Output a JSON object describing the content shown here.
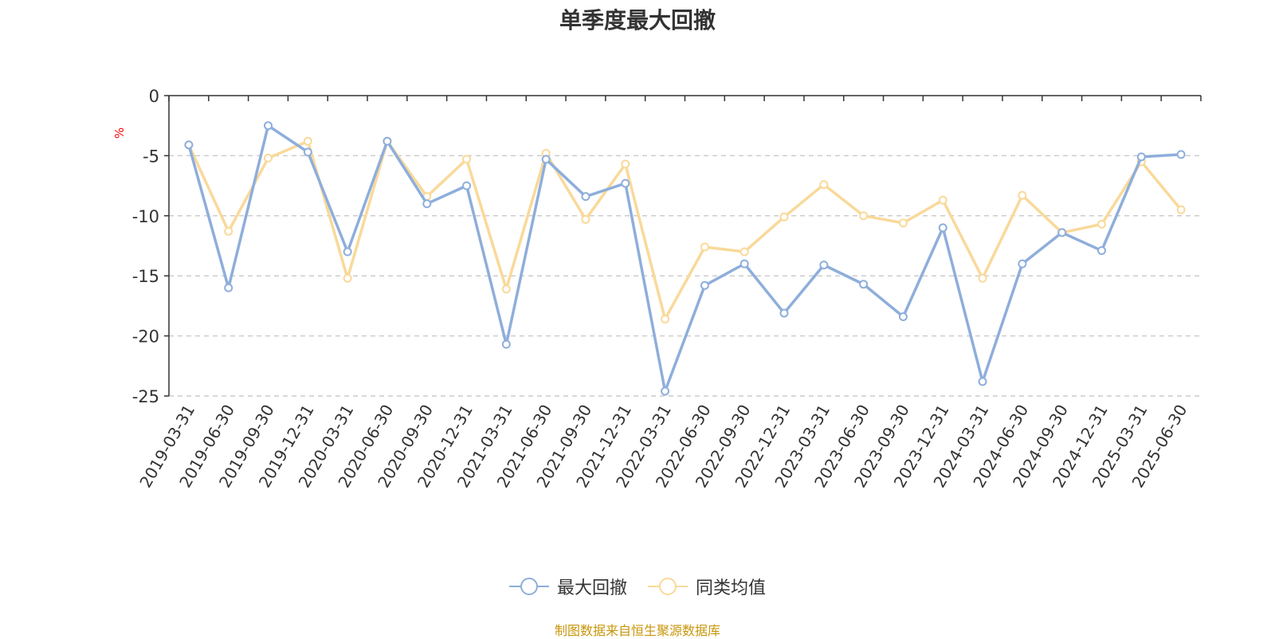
{
  "chart_data": {
    "type": "line",
    "title": "单季度最大回撤",
    "ylabel": "%",
    "ylim": [
      -25,
      0
    ],
    "yticks": [
      "0",
      "-5",
      "-10",
      "-15",
      "-20",
      "-25"
    ],
    "grid": true,
    "legend_position": "bottom-center",
    "categories": [
      "2019-03-31",
      "2019-06-30",
      "2019-09-30",
      "2019-12-31",
      "2020-03-31",
      "2020-06-30",
      "2020-09-30",
      "2020-12-31",
      "2021-03-31",
      "2021-06-30",
      "2021-09-30",
      "2021-12-31",
      "2022-03-31",
      "2022-06-30",
      "2022-09-30",
      "2022-12-31",
      "2023-03-31",
      "2023-06-30",
      "2023-09-30",
      "2023-12-31",
      "2024-03-31",
      "2024-06-30",
      "2024-09-30",
      "2024-12-31",
      "2025-03-31",
      "2025-06-30"
    ],
    "series": [
      {
        "name": "最大回撤",
        "color": "#8eaedb",
        "values": [
          -4.1,
          -16.0,
          -2.5,
          -4.7,
          -13.0,
          -3.8,
          -9.0,
          -7.5,
          -20.7,
          -5.3,
          -8.4,
          -7.3,
          -24.6,
          -15.8,
          -14.0,
          -18.1,
          -14.1,
          -15.7,
          -18.4,
          -11.0,
          -23.8,
          -14.0,
          -11.4,
          -12.9,
          -5.1,
          -4.9
        ]
      },
      {
        "name": "同类均值",
        "color": "#f9d99a",
        "values": [
          -4.1,
          -11.3,
          -5.2,
          -3.8,
          -15.2,
          -3.8,
          -8.4,
          -5.3,
          -16.1,
          -4.8,
          -10.3,
          -5.7,
          -18.6,
          -12.6,
          -13.0,
          -10.1,
          -7.4,
          -10.0,
          -10.6,
          -8.7,
          -15.2,
          -8.3,
          -11.4,
          -10.7,
          -5.5,
          -9.5
        ]
      }
    ],
    "source": "制图数据来自恒生聚源数据库"
  }
}
